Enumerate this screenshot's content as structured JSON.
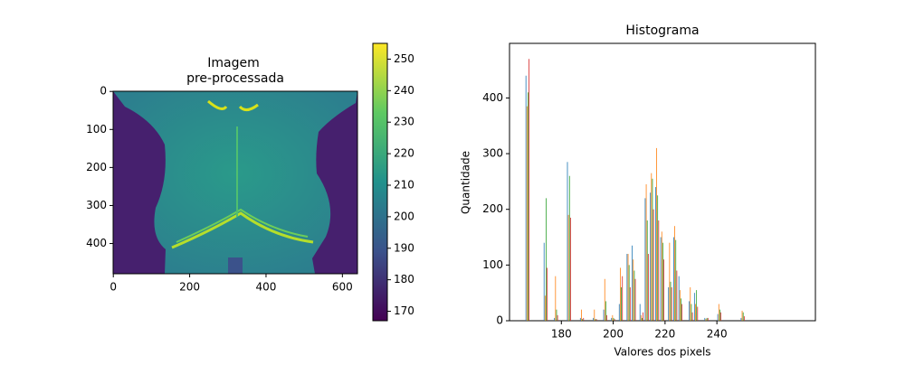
{
  "chart_data": [
    {
      "type": "image",
      "title": [
        "Imagem",
        "pre-processada"
      ],
      "colormap": "viridis",
      "xlim": [
        -0.5,
        639.5
      ],
      "ylim": [
        479.5,
        -0.5
      ],
      "xticks": [
        0,
        200,
        400,
        600
      ],
      "yticks": [
        0,
        100,
        200,
        300,
        400
      ],
      "colorbar": {
        "clim": [
          167,
          255
        ],
        "ticks": [
          170,
          180,
          190,
          200,
          210,
          220,
          230,
          240,
          250
        ]
      }
    },
    {
      "type": "histogram",
      "title": "Histograma",
      "xlabel": "Valores dos pixels",
      "ylabel": "Quantidade",
      "xlim": [
        160,
        278
      ],
      "ylim": [
        0,
        498
      ],
      "xticks": [
        180,
        200,
        220,
        240
      ],
      "yticks": [
        0,
        100,
        200,
        300,
        400
      ],
      "x": [
        167,
        174,
        178,
        183,
        188,
        193,
        197,
        200,
        203,
        206,
        208,
        211,
        213,
        215,
        217,
        219,
        222,
        224,
        226,
        230,
        232,
        236,
        241,
        250
      ],
      "series": [
        {
          "color": "#1f77b4",
          "values": [
            440,
            140,
            5,
            285,
            5,
            5,
            20,
            5,
            30,
            120,
            135,
            30,
            220,
            230,
            240,
            150,
            60,
            150,
            80,
            35,
            50,
            5,
            12,
            5
          ]
        },
        {
          "color": "#ff7f0e",
          "values": [
            385,
            45,
            80,
            190,
            20,
            20,
            75,
            10,
            95,
            120,
            110,
            10,
            245,
            265,
            310,
            160,
            140,
            170,
            55,
            60,
            30,
            3,
            30,
            18
          ]
        },
        {
          "color": "#2ca02c",
          "values": [
            410,
            220,
            20,
            260,
            3,
            3,
            35,
            5,
            60,
            100,
            90,
            5,
            180,
            255,
            225,
            140,
            70,
            145,
            40,
            30,
            55,
            5,
            20,
            15
          ]
        },
        {
          "color": "#d62728",
          "values": [
            470,
            95,
            10,
            185,
            5,
            3,
            10,
            3,
            80,
            60,
            75,
            15,
            120,
            200,
            180,
            110,
            60,
            90,
            30,
            15,
            25,
            5,
            15,
            8
          ]
        }
      ]
    }
  ]
}
